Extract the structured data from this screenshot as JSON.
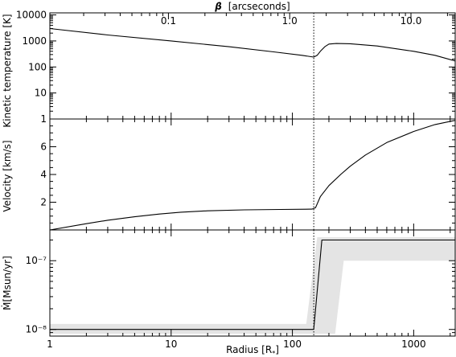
{
  "chart_data": {
    "type": "line",
    "xlabel": "Radius [R*]",
    "xlabel_parts": [
      "Radius [R",
      "*",
      "]"
    ],
    "xscale": "log",
    "xlim": [
      1,
      2200
    ],
    "x_tick_labels": [
      "1",
      "10",
      "100",
      "1000"
    ],
    "x_ticks": [
      1,
      10,
      100,
      1000
    ],
    "top_axis": {
      "label": "β [arcseconds]",
      "label_symbol": "β",
      "label_text": "[arcseconds]",
      "tick_labels": [
        "0.1",
        "1.0",
        "10.0"
      ],
      "ticks_at_radius": [
        9.5,
        95,
        950
      ]
    },
    "vline": {
      "x": 150,
      "style": "dotted"
    },
    "panels": [
      {
        "id": "temperature",
        "ylabel": "Kinetic temperature [K]",
        "yscale": "log",
        "ylim": [
          1,
          12000
        ],
        "y_tick_labels": [
          "1",
          "10",
          "100",
          "1000",
          "10000"
        ],
        "y_ticks": [
          1,
          10,
          100,
          1000,
          10000
        ],
        "series": [
          {
            "x": [
              1,
              3,
              10,
              30,
              70,
              120,
              150,
              160,
              170,
              185,
              200,
              230,
              300,
              500,
              1000,
              1500,
              2200
            ],
            "y": [
              3000,
              1700,
              1000,
              600,
              380,
              280,
              240,
              280,
              400,
              600,
              760,
              800,
              780,
              640,
              400,
              280,
              170
            ]
          }
        ]
      },
      {
        "id": "velocity",
        "ylabel": "Velocity [km/s]",
        "yscale": "linear",
        "ylim": [
          0,
          8
        ],
        "y_tick_labels": [
          "2",
          "4",
          "6"
        ],
        "y_ticks": [
          2,
          4,
          6
        ],
        "series": [
          {
            "x": [
              1,
              2,
              3,
              5,
              8,
              12,
              20,
              40,
              80,
              145,
              155,
              170,
              200,
              250,
              300,
              400,
              600,
              1000,
              1500,
              2200
            ],
            "y": [
              0.0,
              0.45,
              0.7,
              0.95,
              1.15,
              1.28,
              1.38,
              1.45,
              1.48,
              1.5,
              1.6,
              2.4,
              3.2,
              4.0,
              4.6,
              5.4,
              6.3,
              7.1,
              7.6,
              7.9
            ]
          }
        ]
      },
      {
        "id": "mass_loss",
        "ylabel": "Ṁ[Msun/yr]",
        "yscale": "log",
        "ylim": [
          8e-09,
          2.8e-07
        ],
        "y_tick_labels": [
          "10⁻⁸",
          "10⁻⁷"
        ],
        "y_ticks": [
          1e-08,
          1e-07
        ],
        "series": [
          {
            "x": [
              1,
              150,
              175,
              2200
            ],
            "y": [
              1e-08,
              1e-08,
              2e-07,
              2e-07
            ]
          }
        ],
        "uncertainty_band": {
          "upper": {
            "x": [
              1,
              130,
              160,
              2200
            ],
            "y": [
              1.2e-08,
              1.2e-08,
              2.2e-07,
              2.2e-07
            ]
          },
          "lower": {
            "x": [
              1,
              225,
              265,
              2200
            ],
            "y": [
              8.6e-09,
              8.6e-09,
              1e-07,
              1e-07
            ]
          },
          "color": "#e4e4e4"
        }
      }
    ]
  }
}
